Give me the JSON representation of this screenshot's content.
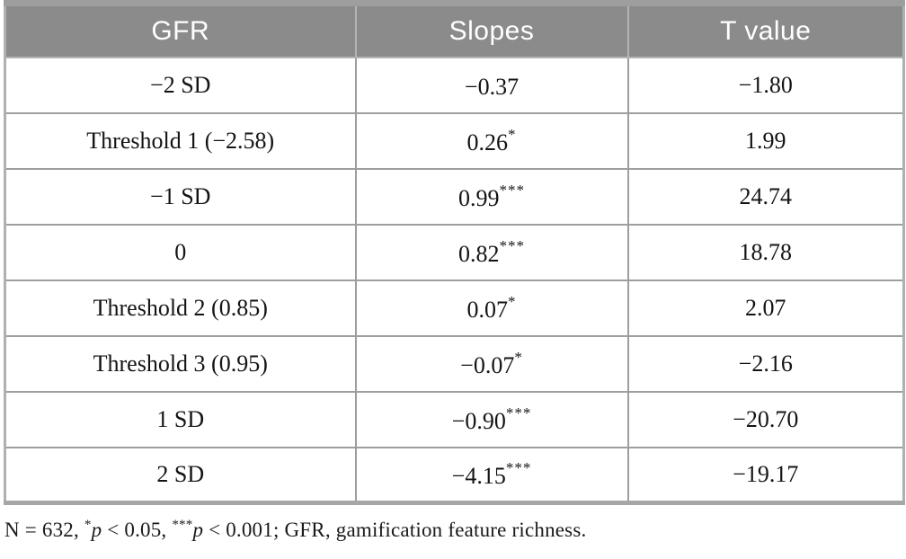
{
  "table": {
    "columns": {
      "gfr": "GFR",
      "slopes": "Slopes",
      "t_value": "T value"
    },
    "rows": [
      {
        "gfr": "−2 SD",
        "slope": "−0.37",
        "sig": "",
        "t": "−1.80"
      },
      {
        "gfr": "Threshold 1 (−2.58)",
        "slope": "0.26",
        "sig": "*",
        "t": "1.99"
      },
      {
        "gfr": "−1 SD",
        "slope": "0.99",
        "sig": "***",
        "t": "24.74"
      },
      {
        "gfr": "0",
        "slope": "0.82",
        "sig": "***",
        "t": "18.78"
      },
      {
        "gfr": "Threshold 2 (0.85)",
        "slope": "0.07",
        "sig": "*",
        "t": "2.07"
      },
      {
        "gfr": "Threshold 3 (0.95)",
        "slope": "−0.07",
        "sig": "*",
        "t": "−2.16"
      },
      {
        "gfr": "1 SD",
        "slope": "−0.90",
        "sig": "***",
        "t": "−20.70"
      },
      {
        "gfr": "2 SD",
        "slope": "−4.15",
        "sig": "***",
        "t": "−19.17"
      }
    ]
  },
  "footnote": {
    "part1": "N = 632, ",
    "sup1": "*",
    "p1": "p",
    "part2": " < 0.05, ",
    "sup2": "***",
    "p2": "p",
    "part3": " < 0.001; GFR, gamification feature richness."
  },
  "colors": {
    "header_bg": "#8b8b8b",
    "header_text": "#ffffff",
    "cell_border": "#9e9e9e",
    "body_text": "#141414"
  }
}
